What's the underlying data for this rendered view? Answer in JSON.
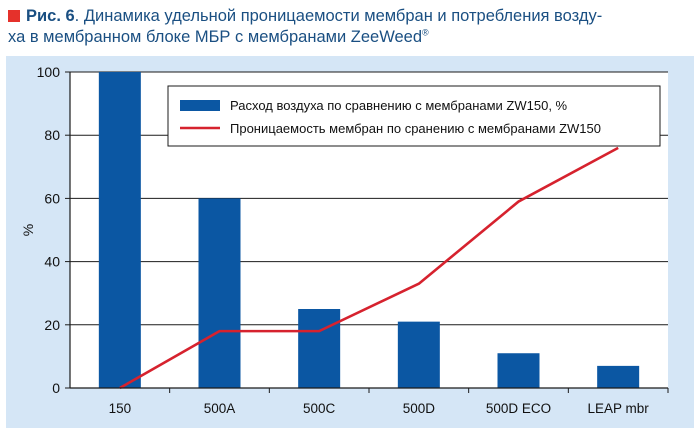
{
  "caption": {
    "label": "Рис. 6",
    "line1": ". Динамика удельной проницаемости мембран и потребления возду-",
    "line2": "ха в мембранном блоке МБР с мембранами ZeeWeed",
    "trademark": "®"
  },
  "colors": {
    "bar": "#0b57a3",
    "line": "#d6222e",
    "panel": "#d5e6f6",
    "marker": "#e5312b",
    "caption_text": "#1a4f82"
  },
  "chart_data": {
    "type": "bar",
    "categories": [
      "150",
      "500A",
      "500C",
      "500D",
      "500D ECO",
      "LEAP mbr"
    ],
    "ylabel": "%",
    "ylim": [
      0,
      100
    ],
    "yticks": [
      0,
      20,
      40,
      60,
      80,
      100
    ],
    "grid": true,
    "legend_position": "top-right",
    "series": [
      {
        "name": "Расход воздуха по сравнению с мембранами ZW150, %",
        "type": "bar",
        "values": [
          100,
          60,
          25,
          21,
          11,
          7
        ]
      },
      {
        "name": "Проницаемость мембран по сранению с мембранами ZW150",
        "type": "line",
        "values": [
          0,
          18,
          18,
          33,
          59,
          76
        ]
      }
    ]
  }
}
